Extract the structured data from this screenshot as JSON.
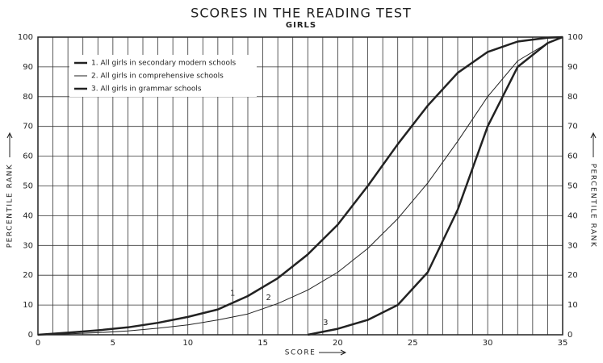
{
  "chart_data": {
    "type": "line",
    "title": "SCORES IN THE READING TEST",
    "subtitle": "GIRLS",
    "xlabel": "SCORE",
    "ylabel": "PERCENTILE RANK",
    "x": [
      0,
      2,
      4,
      6,
      8,
      10,
      12,
      14,
      16,
      18,
      20,
      22,
      24,
      26,
      28,
      30,
      32,
      34,
      35
    ],
    "series": [
      {
        "name": "1.  All girls in secondary modern schools",
        "label": "1",
        "color": "#222",
        "width": 2.5,
        "values": [
          0,
          0.7,
          1.5,
          2.5,
          4,
          6,
          8.5,
          13,
          19,
          27,
          37,
          50,
          64,
          77,
          88,
          95,
          98.5,
          99.8,
          100
        ]
      },
      {
        "name": "2.  All girls in comprehensive schools",
        "label": "2",
        "color": "#222",
        "width": 1,
        "values": [
          0,
          0.3,
          0.7,
          1.3,
          2.2,
          3.3,
          5,
          7,
          10.5,
          15,
          21,
          29,
          39,
          51,
          65,
          80,
          92,
          98,
          100
        ]
      },
      {
        "name": "3.  All girls in grammar schools",
        "label": "3",
        "color": "#222",
        "width": 2.5,
        "values": [
          null,
          null,
          null,
          null,
          null,
          null,
          null,
          null,
          null,
          0,
          2,
          5,
          10,
          21,
          42,
          70,
          90,
          98,
          100
        ]
      }
    ],
    "xlim": [
      0,
      35
    ],
    "ylim": [
      0,
      100
    ],
    "xticks": [
      0,
      5,
      10,
      15,
      20,
      25,
      30,
      35
    ],
    "yticks": [
      0,
      10,
      20,
      30,
      40,
      50,
      60,
      70,
      80,
      90,
      100
    ],
    "xgrid": [
      0,
      1,
      2,
      3,
      4,
      5,
      6,
      7,
      8,
      9,
      10,
      11,
      12,
      13,
      14,
      15,
      16,
      17,
      18,
      19,
      20,
      21,
      22,
      23,
      24,
      25,
      26,
      27,
      28,
      29,
      30,
      31,
      32,
      33,
      34,
      35
    ],
    "grid": true
  }
}
